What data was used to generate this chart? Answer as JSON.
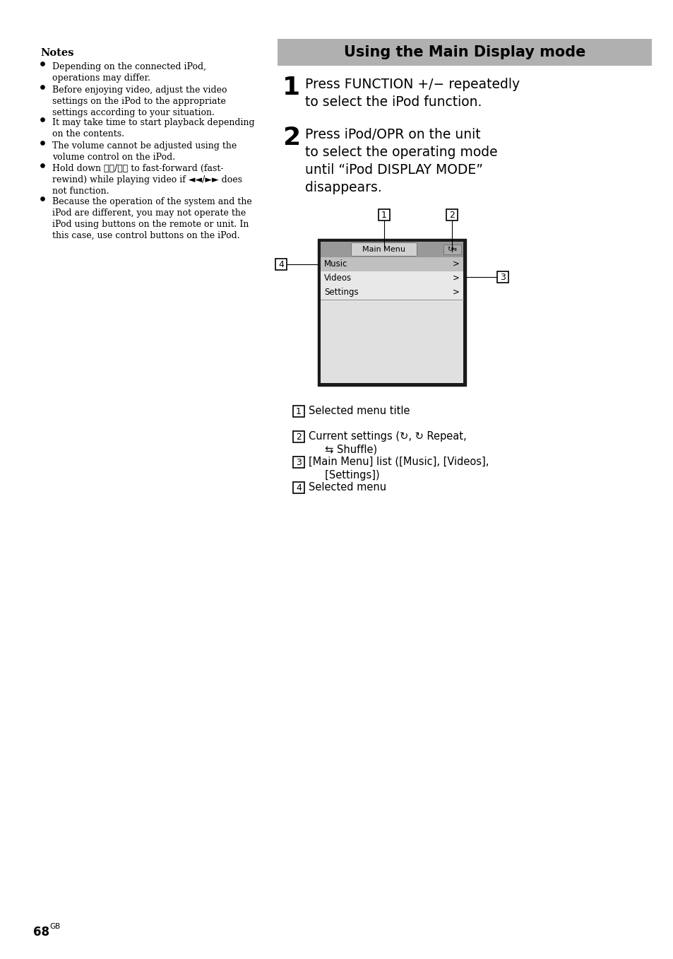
{
  "bg_color": "#ffffff",
  "header_bg": "#b0b0b0",
  "header_text": "Using the Main Display mode",
  "notes_title": "Notes",
  "bullet_texts": [
    "Depending on the connected iPod,\noperations may differ.",
    "Before enjoying video, adjust the video\nsettings on the iPod to the appropriate\nsettings according to your situation.",
    "It may take time to start playback depending\non the contents.",
    "The volume cannot be adjusted using the\nvolume control on the iPod.",
    "Hold down ⏮⏮/⏭⏭ to fast-forward (fast-\nrewind) while playing video if ◄◄/►► does\nnot function.",
    "Because the operation of the system and the\niPod are different, you may not operate the\niPod using buttons on the remote or unit. In\nthis case, use control buttons on the iPod."
  ],
  "bullet_line_counts": [
    2,
    3,
    2,
    2,
    3,
    4
  ],
  "step1_text": "Press FUNCTION +/− repeatedly\nto select the iPod function.",
  "step2_text": "Press iPod/OPR on the unit\nto select the operating mode\nuntil “iPod DISPLAY MODE”\ndisappears.",
  "menu_items": [
    "Music",
    "Videos",
    "Settings"
  ],
  "legend_entries": [
    {
      "num": "1",
      "text": "Selected menu title"
    },
    {
      "num": "2",
      "text": "Current settings (↻, ↻ Repeat,\n     ⇆ Shuffle)"
    },
    {
      "num": "3",
      "text": "[Main Menu] list ([Music], [Videos],\n     [Settings])"
    },
    {
      "num": "4",
      "text": "Selected menu"
    }
  ],
  "page_num": "68",
  "page_suffix": "GB"
}
